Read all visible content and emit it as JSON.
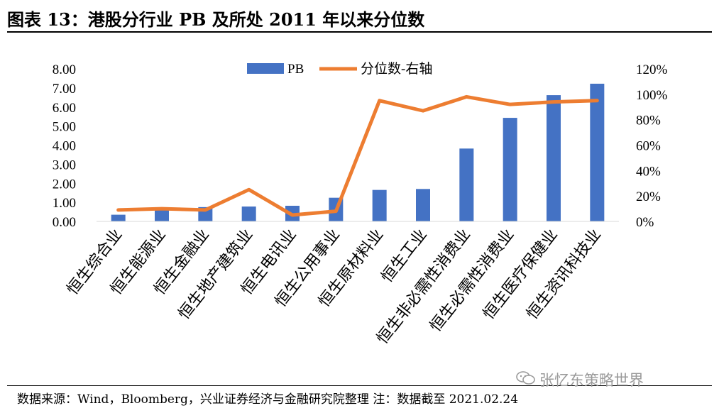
{
  "title": "图表 13：港股分行业 PB 及所处 2011 年以来分位数",
  "source": "数据来源：Wind，Bloomberg，兴业证券经济与金融研究院整理    注：数据截至 2021.02.24",
  "watermark": "张忆东策略世界",
  "colors": {
    "bar": "#4472C4",
    "line": "#ED7D31"
  },
  "chart_data": {
    "type": "bar+line",
    "categories": [
      "恒生综合业",
      "恒生能源业",
      "恒生金融业",
      "恒生地产建筑业",
      "恒生电讯业",
      "恒生公用事业",
      "恒生原材料业",
      "恒生工业",
      "恒生非必需性消费业",
      "恒生必需性消费业",
      "恒生医疗保健业",
      "恒生资讯科技业"
    ],
    "series": [
      {
        "name": "PB",
        "type": "bar",
        "axis": "left",
        "values": [
          0.35,
          0.62,
          0.75,
          0.78,
          0.82,
          1.24,
          1.65,
          1.7,
          3.82,
          5.43,
          6.62,
          7.22
        ]
      },
      {
        "name": "分位数-右轴",
        "type": "line",
        "axis": "right",
        "values": [
          0.09,
          0.1,
          0.09,
          0.25,
          0.05,
          0.08,
          0.95,
          0.87,
          0.98,
          0.92,
          0.94,
          0.95
        ]
      }
    ],
    "left_axis": {
      "min": 0,
      "max": 8,
      "ticks": [
        "0.00",
        "1.00",
        "2.00",
        "3.00",
        "4.00",
        "5.00",
        "6.00",
        "7.00",
        "8.00"
      ]
    },
    "right_axis": {
      "min": 0,
      "max": 1.2,
      "ticks": [
        "0%",
        "20%",
        "40%",
        "60%",
        "80%",
        "100%",
        "120%"
      ]
    },
    "legend_position": "top-center",
    "grid": false
  }
}
